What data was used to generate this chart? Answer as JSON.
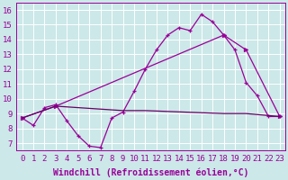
{
  "xlabel": "Windchill (Refroidissement éolien,°C)",
  "bg_color": "#cce8e8",
  "line_color": "#990099",
  "line_color2": "#660066",
  "grid_color": "#ffffff",
  "xlim": [
    -0.5,
    23.5
  ],
  "ylim": [
    6.5,
    16.5
  ],
  "xticks": [
    0,
    1,
    2,
    3,
    4,
    5,
    6,
    7,
    8,
    9,
    10,
    11,
    12,
    13,
    14,
    15,
    16,
    17,
    18,
    19,
    20,
    21,
    22,
    23
  ],
  "yticks": [
    7,
    8,
    9,
    10,
    11,
    12,
    13,
    14,
    15,
    16
  ],
  "line1_x": [
    0,
    1,
    2,
    3,
    4,
    5,
    6,
    7,
    8,
    9,
    10,
    11,
    12,
    13,
    14,
    15,
    16,
    17,
    18,
    19,
    20,
    21,
    22,
    23
  ],
  "line1_y": [
    8.7,
    8.2,
    9.4,
    9.6,
    8.5,
    7.5,
    6.8,
    6.7,
    8.7,
    9.1,
    10.5,
    12.0,
    13.3,
    14.3,
    14.8,
    14.6,
    15.7,
    15.2,
    14.3,
    13.3,
    11.1,
    10.2,
    8.8,
    8.8
  ],
  "line2_x": [
    0,
    3,
    18,
    20,
    23
  ],
  "line2_y": [
    8.7,
    9.5,
    14.3,
    13.3,
    8.8
  ],
  "line3_x": [
    0,
    3,
    9,
    10,
    11,
    18,
    20,
    23
  ],
  "line3_y": [
    8.7,
    9.5,
    9.2,
    9.2,
    9.2,
    9.0,
    9.0,
    8.8
  ],
  "xlabel_fontsize": 7,
  "tick_fontsize": 6.5
}
